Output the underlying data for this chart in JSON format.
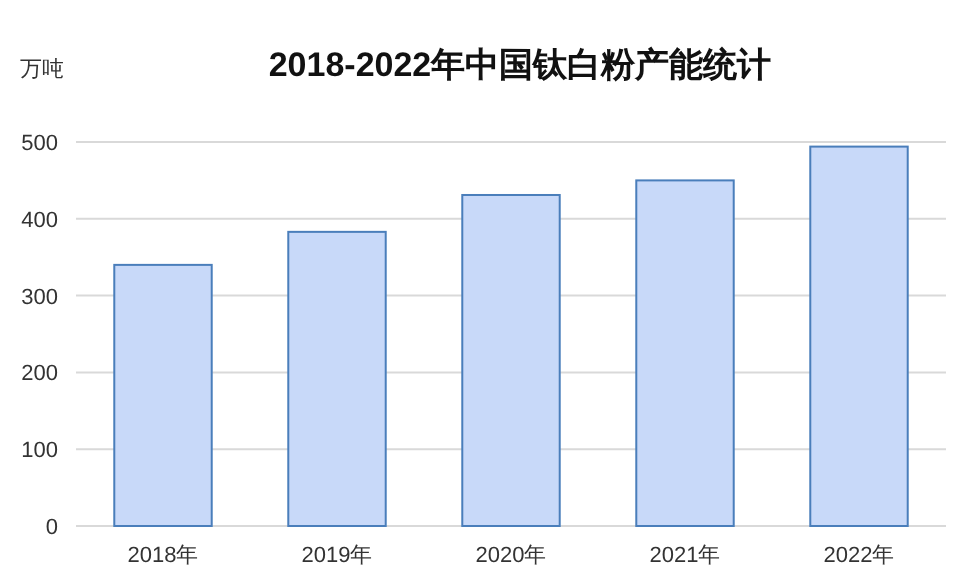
{
  "chart_data": {
    "type": "bar",
    "title": "2018-2022年中国钛白粉产能统计",
    "ylabel": "万吨",
    "categories": [
      "2018年",
      "2019年",
      "2020年",
      "2021年",
      "2022年"
    ],
    "values": [
      340,
      383,
      431,
      450,
      494
    ],
    "color": "#c8d9f9",
    "ylim": [
      0,
      500
    ],
    "yticks": [
      0,
      100,
      200,
      300,
      400,
      500
    ],
    "grid": "y"
  }
}
